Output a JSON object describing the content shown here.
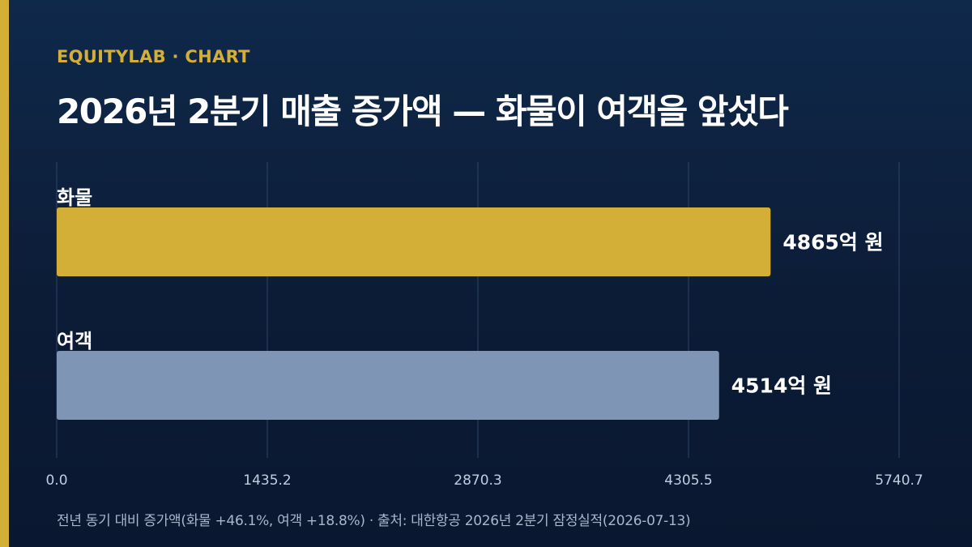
{
  "header": {
    "brand": "EQUITYLAB · CHART",
    "title": "2026년 2분기 매출 증가액 — 화물이 여객을 앞섰다"
  },
  "footnote": "전년 동기 대비 증가액(화물 +46.1%, 여객 +18.8%) · 출처: 대한항공 2026년 2분기 잠정실적(2026-07-13)",
  "colors": {
    "background": "#0c1c36",
    "accent": "#d4af37",
    "cargo": "#d4af37",
    "passenger": "#7f95b6",
    "grid": "#2d4566",
    "tick_text": "#c3cde0"
  },
  "chart_data": {
    "type": "bar",
    "orientation": "horizontal",
    "categories": [
      "화물",
      "여객"
    ],
    "values": [
      4865,
      4514
    ],
    "value_labels": [
      "4865억 원",
      "4514억 원"
    ],
    "unit": "억 원",
    "xlim": [
      0,
      5740.7
    ],
    "x_ticks": [
      "0.0",
      "1435.2",
      "2870.3",
      "4305.5",
      "5740.7"
    ],
    "grid": true,
    "legend": "none"
  }
}
